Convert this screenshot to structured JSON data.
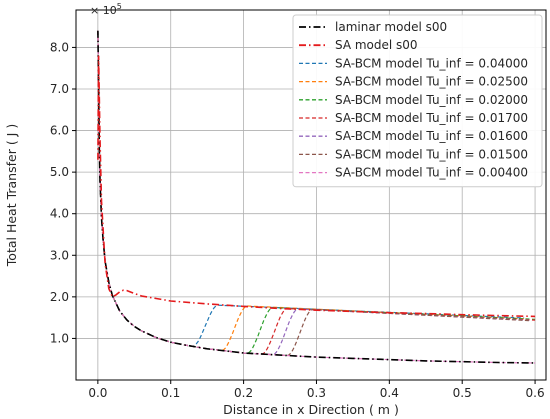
{
  "chart_data": {
    "type": "line",
    "title": "",
    "xlabel": "Distance in x Direction ( m )",
    "ylabel": "Total Heat Transfer ( J )",
    "y_multiplier_label": "× 10^5",
    "y_multiplier_base": "× 10",
    "y_multiplier_exp": "5",
    "xlim": [
      -0.03,
      0.615
    ],
    "ylim": [
      0.0,
      8.9
    ],
    "x_ticks": [
      0.0,
      0.1,
      0.2,
      0.3,
      0.4,
      0.5,
      0.6
    ],
    "x_tick_labels": [
      "0.0",
      "0.1",
      "0.2",
      "0.3",
      "0.4",
      "0.5",
      "0.6"
    ],
    "y_ticks": [
      1.0,
      2.0,
      3.0,
      4.0,
      5.0,
      6.0,
      7.0,
      8.0
    ],
    "y_tick_labels": [
      "1.0",
      "2.0",
      "3.0",
      "4.0",
      "5.0",
      "6.0",
      "7.0",
      "8.0"
    ],
    "grid": true,
    "legend_position": "top-right",
    "laminar_curve": {
      "x": [
        0.0,
        0.001,
        0.002,
        0.003,
        0.005,
        0.007,
        0.01,
        0.015,
        0.02,
        0.03,
        0.04,
        0.05,
        0.06,
        0.08,
        0.1,
        0.12,
        0.15,
        0.18,
        0.2,
        0.22,
        0.25,
        0.28,
        0.3,
        0.35,
        0.4,
        0.45,
        0.5,
        0.55,
        0.6
      ],
      "y": [
        8.4,
        7.0,
        5.6,
        4.8,
        3.9,
        3.4,
        2.86,
        2.35,
        2.03,
        1.66,
        1.44,
        1.29,
        1.18,
        1.02,
        0.91,
        0.84,
        0.75,
        0.69,
        0.65,
        0.63,
        0.6,
        0.57,
        0.55,
        0.52,
        0.49,
        0.46,
        0.44,
        0.42,
        0.41
      ]
    },
    "series": [
      {
        "name": "laminar model s00",
        "color": "#000000",
        "dash": "dashdot",
        "x": [
          0.0,
          0.001,
          0.002,
          0.003,
          0.005,
          0.007,
          0.01,
          0.015,
          0.02,
          0.03,
          0.04,
          0.05,
          0.06,
          0.08,
          0.1,
          0.12,
          0.15,
          0.18,
          0.2,
          0.22,
          0.25,
          0.28,
          0.3,
          0.35,
          0.4,
          0.45,
          0.5,
          0.55,
          0.6
        ],
        "y": [
          8.4,
          7.0,
          5.6,
          4.8,
          3.9,
          3.4,
          2.86,
          2.35,
          2.03,
          1.66,
          1.44,
          1.29,
          1.18,
          1.02,
          0.91,
          0.84,
          0.75,
          0.69,
          0.65,
          0.63,
          0.6,
          0.57,
          0.55,
          0.52,
          0.49,
          0.46,
          0.44,
          0.42,
          0.41
        ]
      },
      {
        "name": "SA model s00",
        "color": "#e41a1c",
        "dash": "dashdot",
        "x": [
          0.0,
          0.001,
          0.003,
          0.005,
          0.01,
          0.015,
          0.02,
          0.025,
          0.03,
          0.035,
          0.04,
          0.05,
          0.06,
          0.08,
          0.1,
          0.15,
          0.2,
          0.25,
          0.3,
          0.35,
          0.4,
          0.45,
          0.5,
          0.55,
          0.6
        ],
        "y": [
          5.3,
          7.8,
          5.8,
          4.3,
          2.8,
          2.2,
          2.0,
          2.05,
          2.12,
          2.16,
          2.15,
          2.08,
          2.02,
          1.96,
          1.9,
          1.83,
          1.77,
          1.72,
          1.68,
          1.65,
          1.62,
          1.6,
          1.57,
          1.55,
          1.53
        ]
      },
      {
        "name": "SA-BCM model Tu_inf = 0.04000",
        "color": "#1f77b4",
        "dash": "dashed",
        "transition": {
          "start": 0.13,
          "x_peak": 0.165,
          "y_peak": 1.8,
          "decay": 0.32
        }
      },
      {
        "name": "SA-BCM model Tu_inf = 0.02500",
        "color": "#ff7f0e",
        "dash": "dashed",
        "transition": {
          "start": 0.17,
          "x_peak": 0.205,
          "y_peak": 1.78,
          "decay": 0.32
        }
      },
      {
        "name": "SA-BCM model Tu_inf = 0.02000",
        "color": "#2ca02c",
        "dash": "dashed",
        "transition": {
          "start": 0.205,
          "x_peak": 0.24,
          "y_peak": 1.74,
          "decay": 0.28
        }
      },
      {
        "name": "SA-BCM model Tu_inf = 0.01700",
        "color": "#d62728",
        "dash": "dashed",
        "transition": {
          "start": 0.225,
          "x_peak": 0.26,
          "y_peak": 1.72,
          "decay": 0.28
        }
      },
      {
        "name": "SA-BCM model Tu_inf = 0.01600",
        "color": "#9467bd",
        "dash": "dashed",
        "transition": {
          "start": 0.24,
          "x_peak": 0.275,
          "y_peak": 1.71,
          "decay": 0.28
        }
      },
      {
        "name": "SA-BCM model Tu_inf = 0.01500",
        "color": "#8c564b",
        "dash": "dashed",
        "transition": {
          "start": 0.26,
          "x_peak": 0.295,
          "y_peak": 1.7,
          "decay": 0.28
        }
      },
      {
        "name": "SA-BCM model Tu_inf = 0.00400",
        "color": "#e377c2",
        "dash": "dashed",
        "transition": null
      }
    ]
  }
}
